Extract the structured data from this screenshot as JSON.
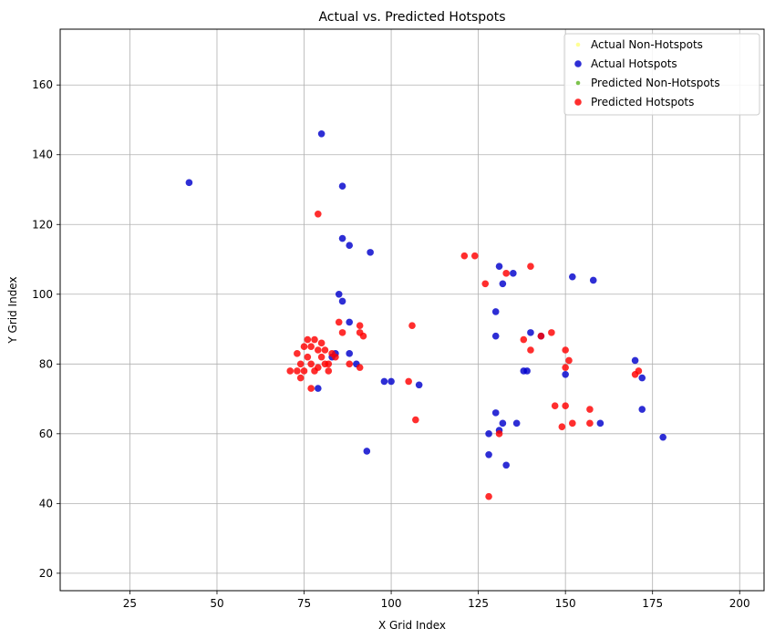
{
  "chart_data": {
    "type": "scatter",
    "title": "Actual vs. Predicted Hotspots",
    "xlabel": "X Grid Index",
    "ylabel": "Y Grid Index",
    "xlim": [
      5,
      207
    ],
    "ylim": [
      15,
      176
    ],
    "xticks": [
      25,
      50,
      75,
      100,
      125,
      150,
      175,
      200
    ],
    "yticks": [
      20,
      40,
      60,
      80,
      100,
      120,
      140,
      160
    ],
    "grid": true,
    "legend_position": "top-right",
    "series": [
      {
        "name": "Actual Non-Hotspots",
        "color": "#ffff66",
        "marker_size": "small",
        "points": []
      },
      {
        "name": "Actual Hotspots",
        "color": "#0000cc",
        "marker_size": "large",
        "points": [
          [
            42,
            132
          ],
          [
            80,
            146
          ],
          [
            86,
            131
          ],
          [
            86,
            116
          ],
          [
            88,
            114
          ],
          [
            94,
            112
          ],
          [
            85,
            100
          ],
          [
            86,
            98
          ],
          [
            88,
            92
          ],
          [
            84,
            83
          ],
          [
            88,
            83
          ],
          [
            90,
            80
          ],
          [
            79,
            73
          ],
          [
            83,
            82
          ],
          [
            98,
            75
          ],
          [
            100,
            75
          ],
          [
            108,
            74
          ],
          [
            93,
            55
          ],
          [
            128,
            54
          ],
          [
            130,
            95
          ],
          [
            132,
            103
          ],
          [
            131,
            108
          ],
          [
            135,
            106
          ],
          [
            138,
            78
          ],
          [
            140,
            89
          ],
          [
            143,
            88
          ],
          [
            139,
            78
          ],
          [
            136,
            63
          ],
          [
            132,
            63
          ],
          [
            130,
            66
          ],
          [
            131,
            61
          ],
          [
            128,
            60
          ],
          [
            133,
            51
          ],
          [
            150,
            77
          ],
          [
            152,
            105
          ],
          [
            158,
            104
          ],
          [
            160,
            63
          ],
          [
            170,
            81
          ],
          [
            172,
            76
          ],
          [
            172,
            67
          ],
          [
            178,
            59
          ],
          [
            130,
            88
          ]
        ]
      },
      {
        "name": "Predicted Non-Hotspots",
        "color": "#44aa00",
        "marker_size": "small",
        "points": []
      },
      {
        "name": "Predicted Hotspots",
        "color": "#ff0000",
        "marker_size": "large",
        "points": [
          [
            79,
            123
          ],
          [
            73,
            83
          ],
          [
            74,
            80
          ],
          [
            75,
            78
          ],
          [
            76,
            82
          ],
          [
            77,
            85
          ],
          [
            78,
            87
          ],
          [
            79,
            84
          ],
          [
            80,
            82
          ],
          [
            81,
            80
          ],
          [
            82,
            78
          ],
          [
            77,
            80
          ],
          [
            78,
            78
          ],
          [
            79,
            79
          ],
          [
            80,
            86
          ],
          [
            81,
            84
          ],
          [
            83,
            83
          ],
          [
            75,
            85
          ],
          [
            73,
            78
          ],
          [
            71,
            78
          ],
          [
            74,
            76
          ],
          [
            77,
            73
          ],
          [
            76,
            87
          ],
          [
            82,
            80
          ],
          [
            84,
            82
          ],
          [
            86,
            89
          ],
          [
            85,
            92
          ],
          [
            88,
            80
          ],
          [
            91,
            89
          ],
          [
            91,
            79
          ],
          [
            92,
            88
          ],
          [
            91,
            91
          ],
          [
            106,
            91
          ],
          [
            107,
            64
          ],
          [
            105,
            75
          ],
          [
            121,
            111
          ],
          [
            124,
            111
          ],
          [
            127,
            103
          ],
          [
            131,
            60
          ],
          [
            128,
            42
          ],
          [
            133,
            106
          ],
          [
            140,
            108
          ],
          [
            140,
            84
          ],
          [
            138,
            87
          ],
          [
            143,
            88
          ],
          [
            146,
            89
          ],
          [
            147,
            68
          ],
          [
            149,
            62
          ],
          [
            152,
            63
          ],
          [
            150,
            68
          ],
          [
            150,
            84
          ],
          [
            151,
            81
          ],
          [
            150,
            79
          ],
          [
            157,
            67
          ],
          [
            157,
            63
          ],
          [
            170,
            77
          ],
          [
            171,
            78
          ]
        ]
      }
    ]
  }
}
